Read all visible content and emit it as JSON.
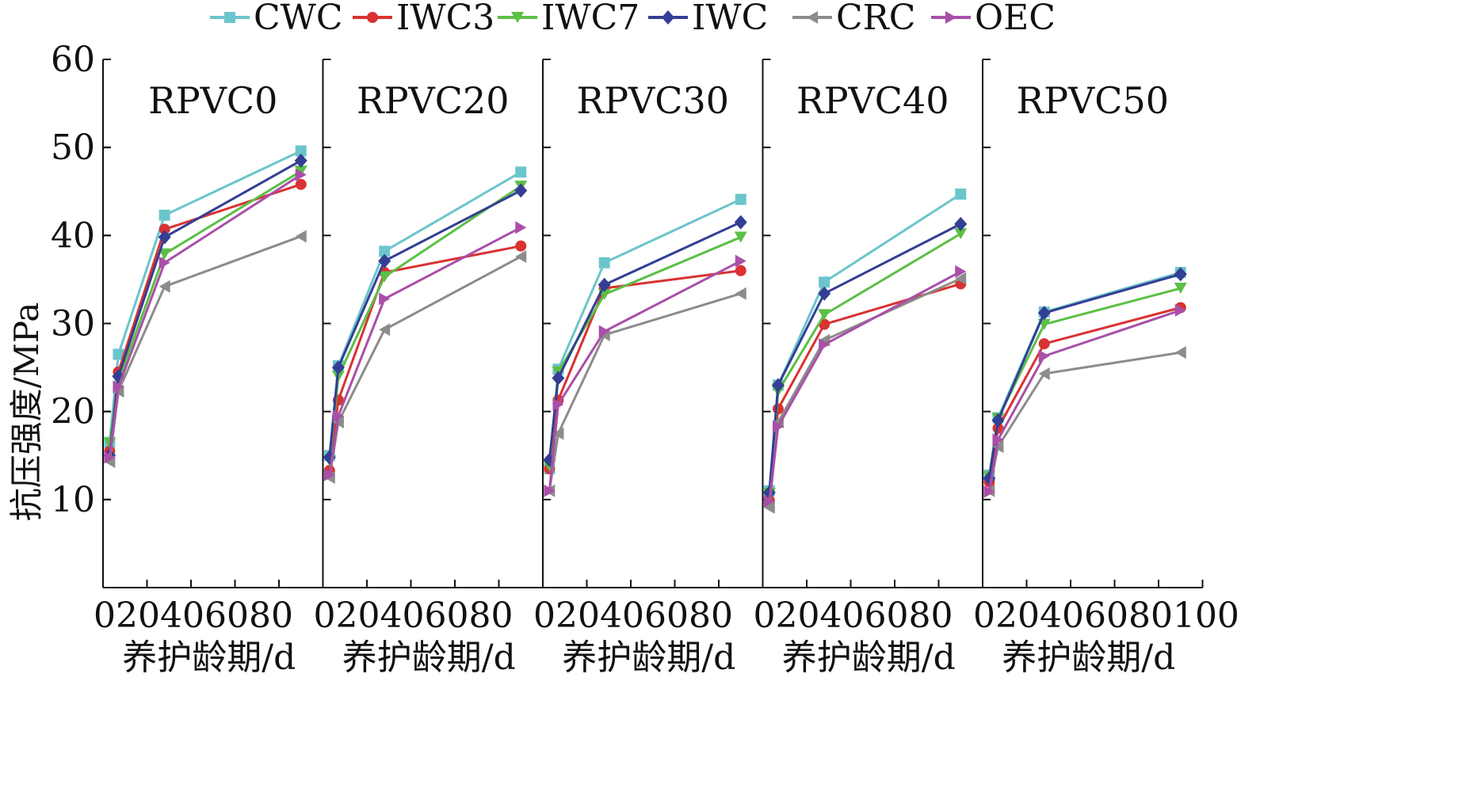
{
  "legend": {
    "items": [
      {
        "name": "CWC",
        "color": "#6cc5cc",
        "marker": "square"
      },
      {
        "name": "IWC3",
        "color": "#d93232",
        "marker": "circle"
      },
      {
        "name": "IWC7",
        "color": "#5cbf46",
        "marker": "triangle-down"
      },
      {
        "name": "IWC",
        "color": "#333e94",
        "marker": "diamond"
      },
      {
        "name": "CRC",
        "color": "#8c8c8c",
        "marker": "triangle-left"
      },
      {
        "name": "OEC",
        "color": "#a94fa8",
        "marker": "triangle-right"
      }
    ]
  },
  "y_axis": {
    "label": "抗压强度/MPa",
    "ticks": [
      "10",
      "20",
      "30",
      "40",
      "50",
      "60"
    ]
  },
  "x_axis": {
    "label": "养护龄期/d",
    "tick_text": "020406080",
    "last_tick_text": "020406080100"
  },
  "chart_data": {
    "type": "line",
    "ylim": [
      0,
      60
    ],
    "xlim": [
      0,
      100
    ],
    "x": [
      3,
      7,
      28,
      90
    ],
    "panels": [
      {
        "title": "RPVC0",
        "series": [
          {
            "name": "CWC",
            "values": [
              16.5,
              26.5,
              42.3,
              49.6
            ]
          },
          {
            "name": "IWC3",
            "values": [
              15.5,
              24.5,
              40.7,
              45.8
            ]
          },
          {
            "name": "IWC7",
            "values": [
              16.4,
              23.5,
              37.9,
              47.3
            ]
          },
          {
            "name": "IWC",
            "values": [
              15.0,
              24.0,
              39.8,
              48.5
            ]
          },
          {
            "name": "CRC",
            "values": [
              14.3,
              22.3,
              34.2,
              39.9
            ]
          },
          {
            "name": "OEC",
            "values": [
              14.8,
              22.8,
              36.9,
              46.9
            ]
          }
        ]
      },
      {
        "title": "RPVC20",
        "series": [
          {
            "name": "CWC",
            "values": [
              15.0,
              25.2,
              38.2,
              47.2
            ]
          },
          {
            "name": "IWC3",
            "values": [
              13.3,
              21.3,
              35.8,
              38.8
            ]
          },
          {
            "name": "IWC7",
            "values": [
              14.4,
              24.0,
              35.3,
              45.6
            ]
          },
          {
            "name": "IWC",
            "values": [
              14.8,
              25.0,
              37.1,
              45.1
            ]
          },
          {
            "name": "CRC",
            "values": [
              12.5,
              18.8,
              29.3,
              37.6
            ]
          },
          {
            "name": "OEC",
            "values": [
              12.8,
              19.5,
              32.8,
              40.9
            ]
          }
        ]
      },
      {
        "title": "RPVC30",
        "series": [
          {
            "name": "CWC",
            "values": [
              13.5,
              24.8,
              36.9,
              44.1
            ]
          },
          {
            "name": "IWC3",
            "values": [
              13.5,
              21.3,
              34.0,
              36.0
            ]
          },
          {
            "name": "IWC7",
            "values": [
              13.8,
              24.5,
              33.3,
              39.8
            ]
          },
          {
            "name": "IWC",
            "values": [
              14.5,
              23.8,
              34.4,
              41.5
            ]
          },
          {
            "name": "CRC",
            "values": [
              11.0,
              17.5,
              28.7,
              33.4
            ]
          },
          {
            "name": "OEC",
            "values": [
              11.0,
              20.8,
              29.1,
              37.1
            ]
          }
        ]
      },
      {
        "title": "RPVC40",
        "series": [
          {
            "name": "CWC",
            "values": [
              11.0,
              23.0,
              34.7,
              44.7
            ]
          },
          {
            "name": "IWC3",
            "values": [
              9.9,
              20.3,
              29.9,
              34.5
            ]
          },
          {
            "name": "IWC7",
            "values": [
              10.7,
              22.3,
              31.0,
              40.2
            ]
          },
          {
            "name": "IWC",
            "values": [
              10.8,
              23.0,
              33.4,
              41.3
            ]
          },
          {
            "name": "CRC",
            "values": [
              9.1,
              18.8,
              28.1,
              35.1
            ]
          },
          {
            "name": "OEC",
            "values": [
              9.8,
              18.3,
              27.6,
              35.9
            ]
          }
        ]
      },
      {
        "title": "RPVC50",
        "series": [
          {
            "name": "CWC",
            "values": [
              12.8,
              19.3,
              31.3,
              35.8
            ]
          },
          {
            "name": "IWC3",
            "values": [
              12.0,
              18.1,
              27.7,
              31.8
            ]
          },
          {
            "name": "IWC7",
            "values": [
              12.6,
              19.2,
              29.9,
              34.0
            ]
          },
          {
            "name": "IWC",
            "values": [
              12.4,
              19.0,
              31.2,
              35.6
            ]
          },
          {
            "name": "CRC",
            "values": [
              11.0,
              16.0,
              24.3,
              26.7
            ]
          },
          {
            "name": "OEC",
            "values": [
              10.9,
              16.8,
              26.3,
              31.5
            ]
          }
        ]
      }
    ]
  }
}
